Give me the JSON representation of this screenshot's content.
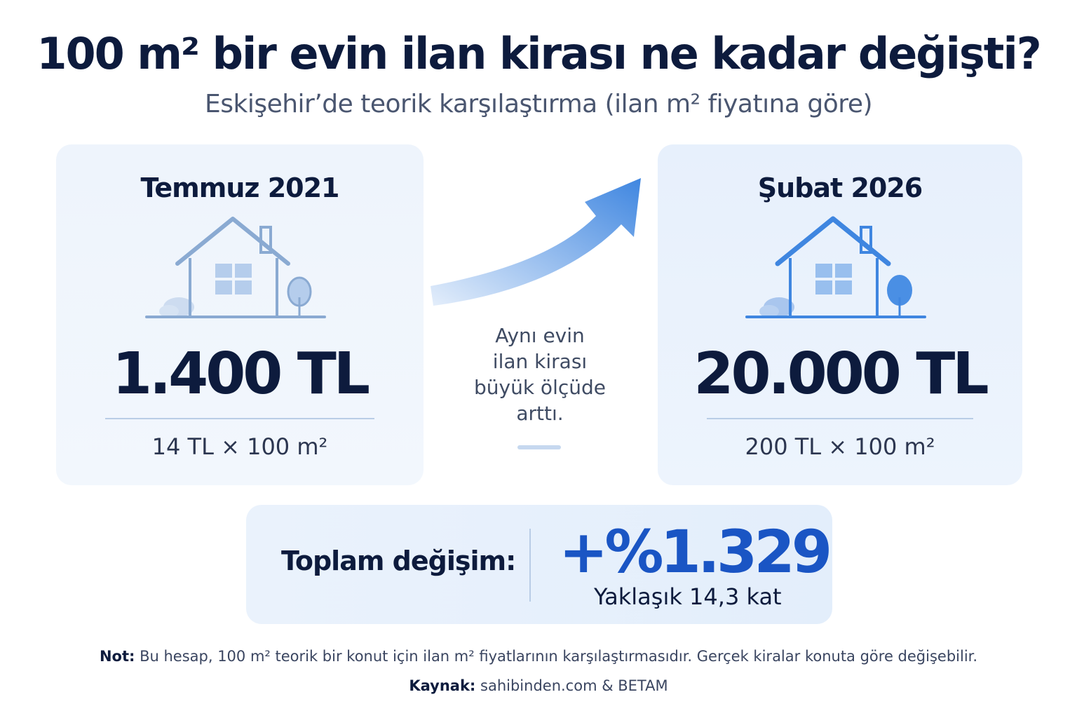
{
  "header": {
    "title": "100 m² bir evin ilan kirası ne kadar değişti?",
    "subtitle": "Eskişehir’de teorik karşılaştırma (ilan m² fiyatına göre)"
  },
  "left_card": {
    "date": "Temmuz 2021",
    "price": "1.400 TL",
    "formula": "14 TL × 100 m²",
    "icon": "house-icon"
  },
  "right_card": {
    "date": "Şubat 2026",
    "price": "20.000 TL",
    "formula": "200 TL × 100 m²",
    "icon": "house-icon"
  },
  "middle": {
    "icon": "arrow-up-right-icon",
    "lines": [
      "Aynı evin",
      "ilan kirası",
      "büyük ölçüde",
      "arttı."
    ]
  },
  "total": {
    "label": "Toplam değişim:",
    "value": "+%1.329",
    "sub": "Yaklaşık 14,3 kat"
  },
  "footer": {
    "note_label": "Not:",
    "note_text": " Bu hesap, 100 m² teorik bir konut için ilan m² fiyatlarının karşılaştırmasıdır. Gerçek kiralar konuta göre değişebilir.",
    "source_label": "Kaynak:",
    "source_text": " sahibinden.com & BETAM"
  },
  "colors": {
    "navy": "#0d1b3d",
    "accent_blue": "#1a55c4",
    "house_left": "#8aaad2",
    "house_right": "#3f86e0"
  }
}
